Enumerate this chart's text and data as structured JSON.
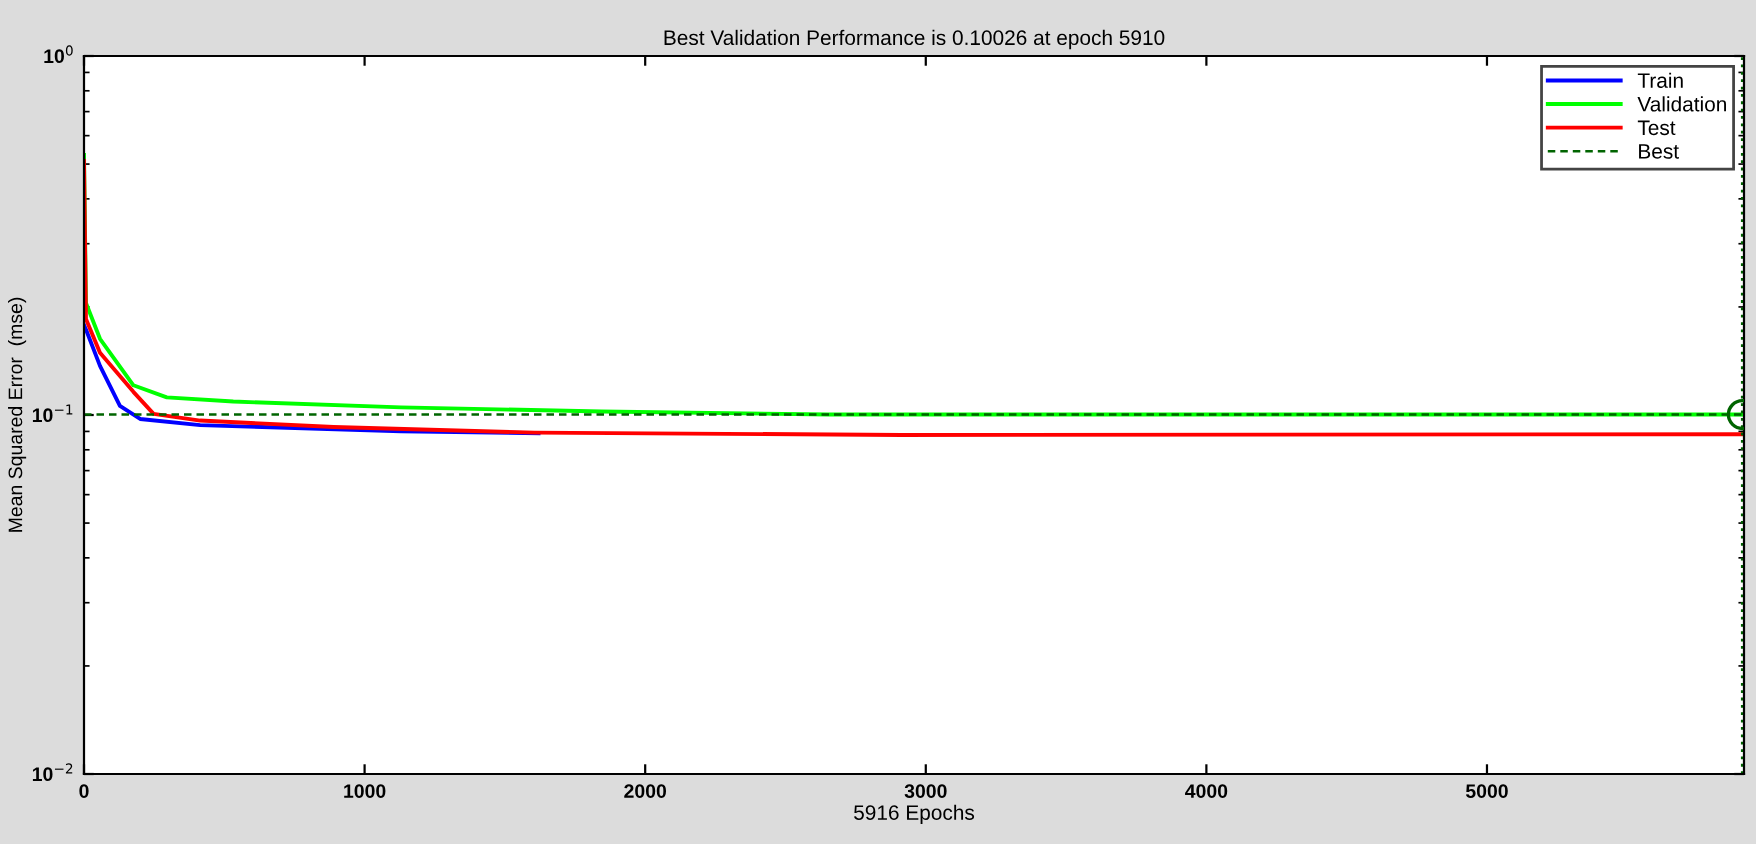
{
  "chart_data": {
    "type": "line",
    "title": "Best Validation Performance is 0.10026 at epoch 5910",
    "xlabel": "5916 Epochs",
    "ylabel": "Mean Squared Error  (mse)",
    "log": "y",
    "xlim": [
      0,
      5916
    ],
    "ylim": [
      0.01,
      1
    ],
    "xticks": [
      0,
      1000,
      2000,
      3000,
      4000,
      5000
    ],
    "yticks": [
      {
        "value": 0.01,
        "label": "10$^{−2}$"
      },
      {
        "value": 0.1,
        "label": "10$^{−1}$"
      },
      {
        "value": 1,
        "label": "10$^{0}$"
      }
    ],
    "grid": false,
    "legend": "top right",
    "series": [
      {
        "name": "Train",
        "color": "#0000ff",
        "x": [
          0,
          7,
          57,
          128,
          200,
          414,
          1130,
          1620
        ],
        "values": [
          0.178,
          0.173,
          0.137,
          0.106,
          0.0975,
          0.0937,
          0.0901,
          0.089
        ]
      },
      {
        "name": "Validation",
        "color": "#00ff00",
        "x": [
          0,
          7,
          57,
          176,
          295,
          532,
          1130,
          1845,
          2650,
          5916
        ],
        "values": [
          0.53,
          0.205,
          0.163,
          0.121,
          0.112,
          0.109,
          0.105,
          0.1023,
          0.1003,
          0.1003
        ]
      },
      {
        "name": "Test",
        "color": "#ff0000",
        "x": [
          0,
          7,
          57,
          176,
          248,
          414,
          890,
          1605,
          2914,
          5916
        ],
        "values": [
          0.51,
          0.185,
          0.149,
          0.116,
          0.1007,
          0.0965,
          0.0926,
          0.0893,
          0.088,
          0.0884
        ]
      },
      {
        "name": "Best",
        "color": "#006400",
        "line_style": "dashed",
        "x": [
          0,
          5916
        ],
        "values": [
          0.10026,
          0.10026
        ]
      },
      {
        "type": "scatter",
        "marker": "circle",
        "color": "#006400",
        "x": [
          5910
        ],
        "values": [
          0.10026
        ]
      }
    ],
    "ref_lines": [
      {
        "axis": "x",
        "value": 5910,
        "color": "#006400",
        "line_style": "dotted"
      }
    ]
  }
}
